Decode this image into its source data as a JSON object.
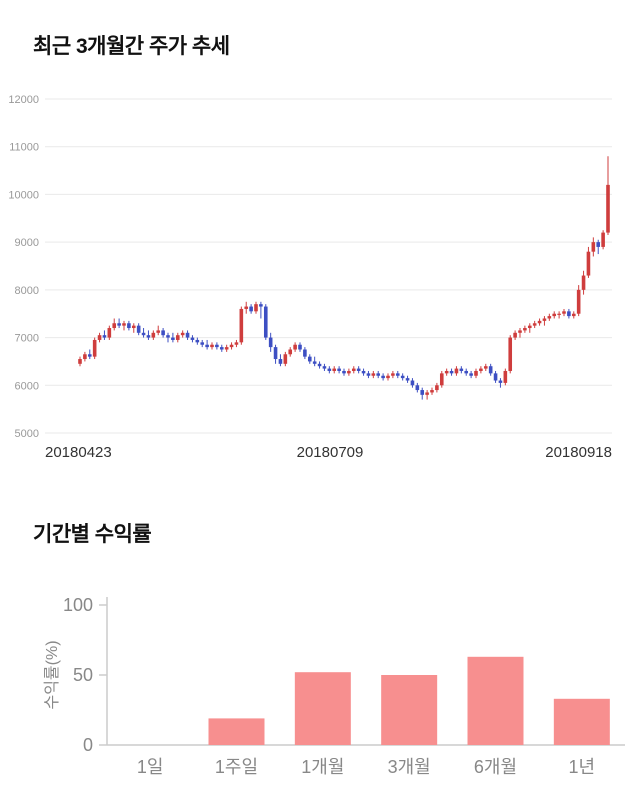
{
  "sections": {
    "price_trend_title": "최근 3개월간 주가 추세",
    "returns_title": "기간별 수익률"
  },
  "chart_data": [
    {
      "type": "candlestick",
      "title": "최근 3개월간 주가 추세",
      "ylim": [
        5000,
        12000
      ],
      "yticks": [
        5000,
        6000,
        7000,
        8000,
        9000,
        10000,
        11000,
        12000
      ],
      "xtick_labels": [
        "20180423",
        "20180709",
        "20180918"
      ],
      "grid": true,
      "up_color": "#cf3d3d",
      "down_color": "#3d4fc3",
      "grid_color": "#e9e9e9",
      "ytick_color": "#999999",
      "xtick_color": "#333333",
      "candle_format": [
        "open",
        "high",
        "low",
        "close"
      ],
      "candles": [
        [
          6450,
          6600,
          6400,
          6550
        ],
        [
          6550,
          6700,
          6500,
          6650
        ],
        [
          6650,
          6750,
          6550,
          6600
        ],
        [
          6600,
          7000,
          6550,
          6950
        ],
        [
          6950,
          7100,
          6900,
          7050
        ],
        [
          7050,
          7150,
          6950,
          7000
        ],
        [
          7000,
          7250,
          6950,
          7200
        ],
        [
          7200,
          7400,
          7150,
          7300
        ],
        [
          7300,
          7400,
          7200,
          7250
        ],
        [
          7250,
          7350,
          7150,
          7300
        ],
        [
          7300,
          7350,
          7150,
          7200
        ],
        [
          7200,
          7300,
          7100,
          7250
        ],
        [
          7250,
          7300,
          7050,
          7100
        ],
        [
          7100,
          7200,
          7000,
          7050
        ],
        [
          7050,
          7150,
          6950,
          7000
        ],
        [
          7000,
          7150,
          6950,
          7100
        ],
        [
          7100,
          7250,
          7050,
          7150
        ],
        [
          7150,
          7200,
          7000,
          7050
        ],
        [
          7050,
          7100,
          6900,
          7000
        ],
        [
          7000,
          7100,
          6900,
          6950
        ],
        [
          6950,
          7100,
          6900,
          7050
        ],
        [
          7050,
          7150,
          7000,
          7100
        ],
        [
          7100,
          7150,
          6950,
          7000
        ],
        [
          7000,
          7050,
          6900,
          6950
        ],
        [
          6950,
          7000,
          6850,
          6900
        ],
        [
          6900,
          6950,
          6800,
          6850
        ],
        [
          6850,
          6950,
          6750,
          6800
        ],
        [
          6800,
          6900,
          6750,
          6850
        ],
        [
          6850,
          6900,
          6750,
          6800
        ],
        [
          6800,
          6850,
          6700,
          6750
        ],
        [
          6750,
          6850,
          6700,
          6800
        ],
        [
          6800,
          6900,
          6750,
          6850
        ],
        [
          6850,
          6950,
          6800,
          6900
        ],
        [
          6900,
          7650,
          6850,
          7600
        ],
        [
          7600,
          7750,
          7500,
          7650
        ],
        [
          7650,
          7700,
          7500,
          7550
        ],
        [
          7550,
          7750,
          7500,
          7700
        ],
        [
          7700,
          7750,
          7400,
          7650
        ],
        [
          7650,
          7700,
          6950,
          7000
        ],
        [
          7000,
          7100,
          6700,
          6800
        ],
        [
          6800,
          6850,
          6450,
          6550
        ],
        [
          6550,
          6650,
          6400,
          6450
        ],
        [
          6450,
          6700,
          6400,
          6650
        ],
        [
          6650,
          6800,
          6600,
          6750
        ],
        [
          6750,
          6900,
          6700,
          6850
        ],
        [
          6850,
          6900,
          6700,
          6750
        ],
        [
          6750,
          6800,
          6550,
          6600
        ],
        [
          6600,
          6650,
          6450,
          6500
        ],
        [
          6500,
          6600,
          6400,
          6450
        ],
        [
          6450,
          6500,
          6350,
          6400
        ],
        [
          6400,
          6450,
          6300,
          6350
        ],
        [
          6350,
          6400,
          6250,
          6300
        ],
        [
          6300,
          6400,
          6250,
          6350
        ],
        [
          6350,
          6400,
          6250,
          6300
        ],
        [
          6300,
          6350,
          6200,
          6250
        ],
        [
          6250,
          6350,
          6200,
          6300
        ],
        [
          6300,
          6400,
          6250,
          6350
        ],
        [
          6350,
          6400,
          6250,
          6300
        ],
        [
          6300,
          6350,
          6200,
          6250
        ],
        [
          6250,
          6300,
          6150,
          6200
        ],
        [
          6200,
          6300,
          6150,
          6250
        ],
        [
          6250,
          6300,
          6150,
          6200
        ],
        [
          6200,
          6250,
          6100,
          6150
        ],
        [
          6150,
          6250,
          6100,
          6200
        ],
        [
          6200,
          6300,
          6150,
          6250
        ],
        [
          6250,
          6300,
          6150,
          6200
        ],
        [
          6200,
          6250,
          6100,
          6150
        ],
        [
          6150,
          6200,
          6050,
          6100
        ],
        [
          6100,
          6150,
          5950,
          6000
        ],
        [
          6000,
          6050,
          5850,
          5900
        ],
        [
          5900,
          5950,
          5700,
          5800
        ],
        [
          5800,
          5900,
          5700,
          5850
        ],
        [
          5850,
          5950,
          5800,
          5900
        ],
        [
          5900,
          6050,
          5850,
          6000
        ],
        [
          6000,
          6300,
          5950,
          6250
        ],
        [
          6250,
          6350,
          6200,
          6300
        ],
        [
          6300,
          6350,
          6200,
          6250
        ],
        [
          6250,
          6400,
          6200,
          6350
        ],
        [
          6350,
          6400,
          6250,
          6300
        ],
        [
          6300,
          6350,
          6200,
          6250
        ],
        [
          6250,
          6300,
          6150,
          6200
        ],
        [
          6200,
          6350,
          6150,
          6300
        ],
        [
          6300,
          6400,
          6250,
          6350
        ],
        [
          6350,
          6450,
          6300,
          6400
        ],
        [
          6400,
          6450,
          6200,
          6250
        ],
        [
          6250,
          6300,
          6050,
          6100
        ],
        [
          6100,
          6150,
          5950,
          6050
        ],
        [
          6050,
          6350,
          6000,
          6300
        ],
        [
          6300,
          7050,
          6250,
          7000
        ],
        [
          7000,
          7150,
          6950,
          7100
        ],
        [
          7100,
          7200,
          7000,
          7150
        ],
        [
          7150,
          7250,
          7100,
          7200
        ],
        [
          7200,
          7300,
          7100,
          7250
        ],
        [
          7250,
          7350,
          7200,
          7300
        ],
        [
          7300,
          7400,
          7250,
          7350
        ],
        [
          7350,
          7450,
          7250,
          7400
        ],
        [
          7400,
          7500,
          7350,
          7450
        ],
        [
          7450,
          7550,
          7400,
          7500
        ],
        [
          7500,
          7550,
          7400,
          7500
        ],
        [
          7500,
          7600,
          7450,
          7550
        ],
        [
          7550,
          7600,
          7400,
          7450
        ],
        [
          7450,
          7550,
          7400,
          7500
        ],
        [
          7500,
          8100,
          7450,
          8000
        ],
        [
          8000,
          8400,
          7900,
          8300
        ],
        [
          8300,
          8900,
          8250,
          8800
        ],
        [
          8800,
          9100,
          8700,
          9000
        ],
        [
          9000,
          9050,
          8750,
          8900
        ],
        [
          8900,
          9250,
          8850,
          9200
        ],
        [
          9200,
          10800,
          9150,
          10200
        ]
      ]
    },
    {
      "type": "bar",
      "title": "기간별 수익률",
      "xlabel": "",
      "ylabel": "수익률(%)",
      "categories": [
        "1일",
        "1주일",
        "1개월",
        "3개월",
        "6개월",
        "1년"
      ],
      "values": [
        0,
        19,
        52,
        50,
        63,
        33
      ],
      "yticks": [
        0,
        50,
        100
      ],
      "ylim": [
        0,
        100
      ],
      "legend": "none",
      "grid": false,
      "bar_color": "#f78f8f",
      "axis_color": "#cccccc",
      "text_color": "#888888"
    }
  ]
}
